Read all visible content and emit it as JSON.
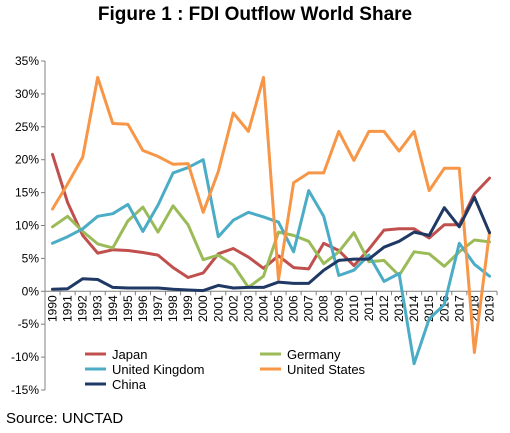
{
  "title": "Figure 1 : FDI Outflow World Share",
  "source": "Source: UNCTAD",
  "chart_data": {
    "type": "line",
    "x": [
      "1990",
      "1991",
      "1992",
      "1993",
      "1994",
      "1995",
      "1996",
      "1997",
      "1998",
      "1999",
      "2000",
      "2001",
      "2002",
      "2003",
      "2004",
      "2005",
      "2006",
      "2007",
      "2008",
      "2009",
      "2010",
      "2011",
      "2012",
      "2013",
      "2014",
      "2015",
      "2016",
      "2017",
      "2018",
      "2019"
    ],
    "ylim": [
      -15,
      35
    ],
    "yticks": [
      "-15%",
      "-10%",
      "-5%",
      "0%",
      "5%",
      "10%",
      "15%",
      "20%",
      "25%",
      "30%",
      "35%"
    ],
    "ytick_values": [
      -15,
      -10,
      -5,
      0,
      5,
      10,
      15,
      20,
      25,
      30,
      35
    ],
    "legend_position": "bottom",
    "series": [
      {
        "name": "Japan",
        "color": "#c0504d",
        "values": [
          20.8,
          13.5,
          8.5,
          5.8,
          6.3,
          6.2,
          5.9,
          5.5,
          3.6,
          2.1,
          2.8,
          5.7,
          6.5,
          5.2,
          3.5,
          5.4,
          3.6,
          3.4,
          7.3,
          6.2,
          3.9,
          6.4,
          9.3,
          9.5,
          9.5,
          8.1,
          10.1,
          10.1,
          14.8,
          17.2
        ]
      },
      {
        "name": "Germany",
        "color": "#9bbb59",
        "values": [
          9.8,
          11.4,
          9.1,
          7.2,
          6.6,
          10.7,
          12.8,
          9.0,
          13.0,
          10.1,
          4.8,
          5.5,
          4.0,
          0.6,
          2.3,
          9.0,
          8.5,
          7.6,
          4.2,
          6.0,
          8.9,
          4.5,
          4.7,
          2.4,
          6.0,
          5.7,
          3.8,
          6.0,
          7.8,
          7.5
        ]
      },
      {
        "name": "United Kingdom",
        "color": "#4bacc6",
        "values": [
          7.3,
          8.3,
          9.5,
          11.4,
          11.8,
          13.2,
          9.1,
          13.1,
          18.0,
          18.8,
          20.0,
          8.3,
          10.8,
          12.0,
          11.3,
          10.5,
          6.0,
          15.3,
          11.4,
          2.4,
          3.2,
          5.5,
          1.5,
          2.7,
          -11.0,
          -4.2,
          -2.0,
          7.3,
          4.1,
          2.3
        ]
      },
      {
        "name": "United States",
        "color": "#f79646",
        "values": [
          12.5,
          16.3,
          20.4,
          32.5,
          25.5,
          25.4,
          21.4,
          20.5,
          19.3,
          19.4,
          12.0,
          18.2,
          27.1,
          24.3,
          32.5,
          1.8,
          16.5,
          18.0,
          18.0,
          24.3,
          19.9,
          24.3,
          24.3,
          21.3,
          24.3,
          15.3,
          18.7,
          18.7,
          -9.3,
          9.0
        ]
      },
      {
        "name": "China",
        "color": "#1f3864",
        "values": [
          0.3,
          0.4,
          1.9,
          1.8,
          0.6,
          0.5,
          0.5,
          0.5,
          0.3,
          0.2,
          0.1,
          0.9,
          0.5,
          0.6,
          0.6,
          1.4,
          1.2,
          1.2,
          3.2,
          4.7,
          4.9,
          4.9,
          6.7,
          7.6,
          9.0,
          8.5,
          12.7,
          9.8,
          14.3,
          8.9
        ]
      }
    ]
  }
}
